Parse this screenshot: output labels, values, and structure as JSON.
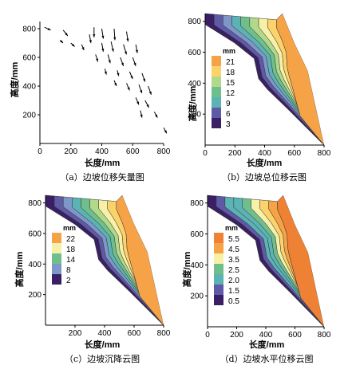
{
  "colors": {
    "scale": [
      "#3b1f66",
      "#5f5aa6",
      "#7f97c8",
      "#5cb3b5",
      "#6fbf8c",
      "#b2d98a",
      "#f7f0a8",
      "#fbd36a",
      "#f6a347",
      "#ee8133"
    ],
    "axis": "#000000",
    "contour_line": "#333333",
    "arrow": "#000000",
    "background": "#ffffff"
  },
  "panels": [
    {
      "caption": "（a）边坡位移矢量图",
      "type": "vector",
      "xlabel": "长度/mm",
      "ylabel": "高度/mm",
      "xticks": [
        "0",
        "200",
        "400",
        "600",
        "800"
      ],
      "yticks": [
        "200",
        "400",
        "600",
        "800"
      ],
      "legend_unit": "",
      "legend_labels": []
    },
    {
      "caption": "（b）边坡总位移云图",
      "type": "contour",
      "xlabel": "长度/mm",
      "ylabel": "高度/mm",
      "xticks": [
        "0",
        "200",
        "400",
        "600",
        "800"
      ],
      "yticks": [
        "200",
        "400",
        "600",
        "800"
      ],
      "legend_unit": "mm",
      "legend_labels": [
        "21",
        "18",
        "15",
        "12",
        "9",
        "6",
        "3"
      ]
    },
    {
      "caption": "（c）边坡沉降云图",
      "type": "contour",
      "xlabel": "长度/mm",
      "ylabel": "高度/mm",
      "xticks": [
        "200",
        "400",
        "600",
        "800"
      ],
      "yticks": [
        "200",
        "400",
        "600",
        "800"
      ],
      "legend_unit": "mm",
      "legend_labels": [
        "22",
        "18",
        "14",
        "8",
        "2"
      ]
    },
    {
      "caption": "（d）边坡水平位移云图",
      "type": "contour",
      "xlabel": "长度/mm",
      "ylabel": "高度/mm",
      "xticks": [
        "0",
        "200",
        "400",
        "600",
        "800"
      ],
      "yticks": [
        "200",
        "400",
        "600",
        "800"
      ],
      "legend_unit": "mm",
      "legend_labels": [
        "5.5",
        "4.5",
        "3.5",
        "2.5",
        "2.0",
        "1.5",
        "0.5"
      ]
    }
  ],
  "chart_data": [
    {
      "type": "vector",
      "xlim": [
        0,
        800
      ],
      "ylim": [
        0,
        850
      ],
      "xlabel": "长度/mm",
      "ylabel": "高度/mm",
      "vectors": [
        [
          30,
          810,
          40,
          -20
        ],
        [
          150,
          790,
          30,
          -40
        ],
        [
          130,
          720,
          20,
          -20
        ],
        [
          200,
          700,
          25,
          -25
        ],
        [
          350,
          810,
          0,
          -70
        ],
        [
          320,
          760,
          10,
          -60
        ],
        [
          270,
          690,
          15,
          -40
        ],
        [
          400,
          800,
          10,
          -70
        ],
        [
          400,
          700,
          10,
          -60
        ],
        [
          360,
          620,
          15,
          -50
        ],
        [
          480,
          800,
          5,
          -80
        ],
        [
          460,
          710,
          15,
          -70
        ],
        [
          440,
          620,
          15,
          -60
        ],
        [
          420,
          520,
          10,
          -40
        ],
        [
          560,
          780,
          10,
          -70
        ],
        [
          540,
          690,
          20,
          -70
        ],
        [
          520,
          600,
          20,
          -60
        ],
        [
          500,
          510,
          10,
          -40
        ],
        [
          480,
          440,
          15,
          -40
        ],
        [
          620,
          690,
          10,
          -60
        ],
        [
          600,
          600,
          20,
          -60
        ],
        [
          580,
          500,
          20,
          -50
        ],
        [
          560,
          420,
          20,
          -50
        ],
        [
          660,
          490,
          20,
          -60
        ],
        [
          640,
          410,
          20,
          -60
        ],
        [
          620,
          320,
          20,
          -50
        ],
        [
          700,
          400,
          20,
          -60
        ],
        [
          680,
          300,
          25,
          -50
        ],
        [
          650,
          230,
          10,
          -50
        ],
        [
          740,
          220,
          20,
          -40
        ],
        [
          800,
          110,
          20,
          -40
        ]
      ]
    },
    {
      "type": "contour",
      "xlim": [
        0,
        800
      ],
      "ylim": [
        0,
        850
      ],
      "xlabel": "长度/mm",
      "ylabel": "高度/mm",
      "series": [
        {
          "name": "3",
          "level": 3
        },
        {
          "name": "6",
          "level": 6
        },
        {
          "name": "9",
          "level": 9
        },
        {
          "name": "12",
          "level": 12
        },
        {
          "name": "15",
          "level": 15
        },
        {
          "name": "18",
          "level": 18
        },
        {
          "name": "21",
          "level": 21
        }
      ]
    },
    {
      "type": "contour",
      "xlim": [
        0,
        800
      ],
      "ylim": [
        0,
        850
      ],
      "xlabel": "长度/mm",
      "ylabel": "高度/mm",
      "series": [
        {
          "name": "2",
          "level": 2
        },
        {
          "name": "8",
          "level": 8
        },
        {
          "name": "14",
          "level": 14
        },
        {
          "name": "18",
          "level": 18
        },
        {
          "name": "22",
          "level": 22
        }
      ]
    },
    {
      "type": "contour",
      "xlim": [
        0,
        800
      ],
      "ylim": [
        0,
        850
      ],
      "xlabel": "长度/mm",
      "ylabel": "高度/mm",
      "series": [
        {
          "name": "0.5",
          "level": 0.5
        },
        {
          "name": "1.5",
          "level": 1.5
        },
        {
          "name": "2.0",
          "level": 2.0
        },
        {
          "name": "2.5",
          "level": 2.5
        },
        {
          "name": "3.5",
          "level": 3.5
        },
        {
          "name": "4.5",
          "level": 4.5
        },
        {
          "name": "5.5",
          "level": 5.5
        }
      ]
    }
  ]
}
